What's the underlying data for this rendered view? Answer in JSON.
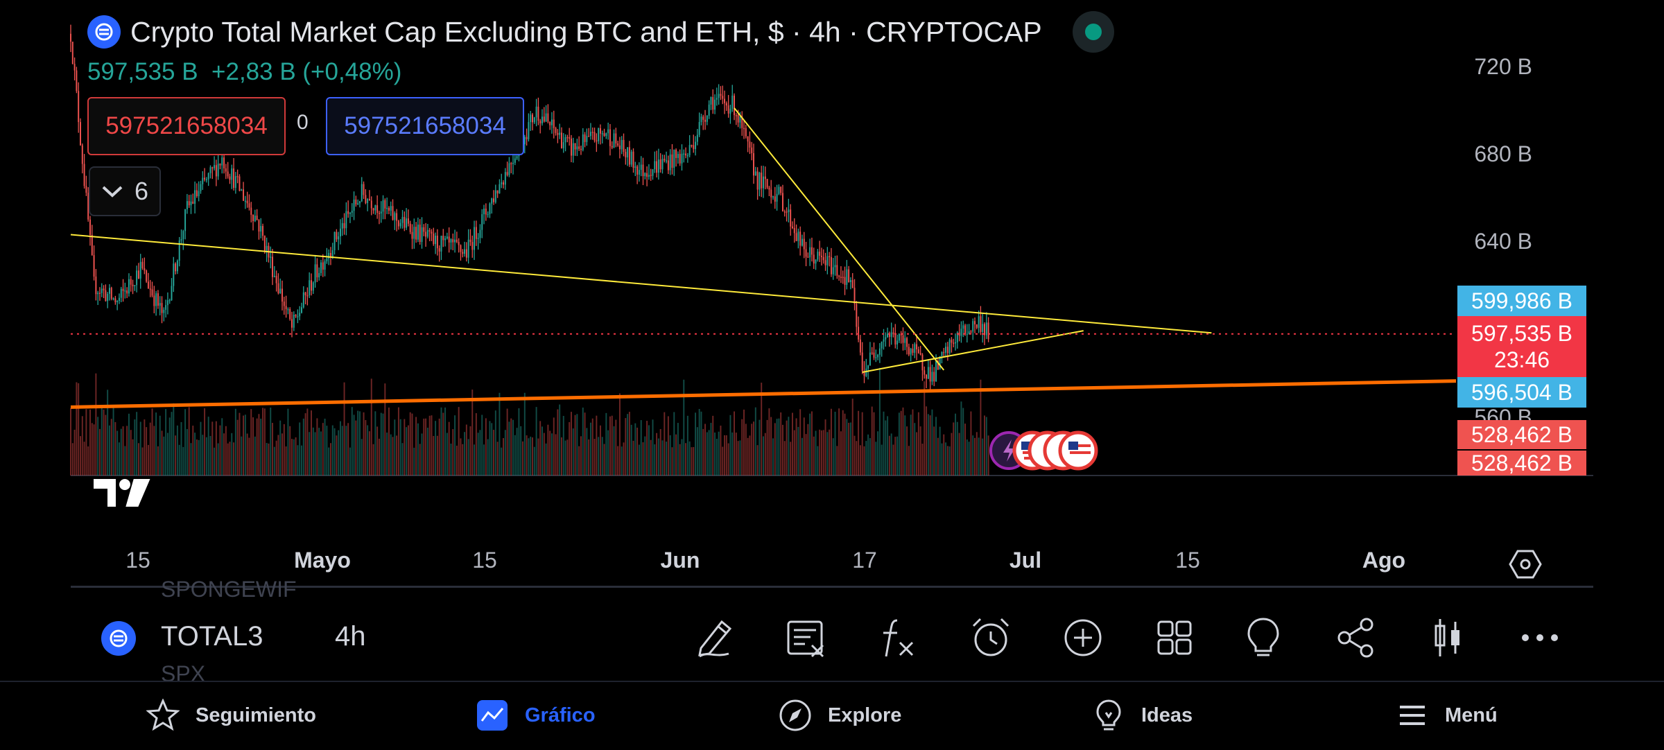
{
  "header": {
    "title": "Crypto Total Market Cap Excluding BTC and ETH, $ · 4h · CRYPTOCAP",
    "last_price": "597,535 B",
    "change": "+2,83 B (+0,48%)",
    "sell_price": "597521658034",
    "spread": "0",
    "buy_price": "597521658034",
    "indicators_count": "6"
  },
  "price_axis": {
    "labels": [
      "720 B",
      "680 B",
      "640 B",
      "560 B"
    ],
    "tags": {
      "upper": "599,986 B",
      "last": "597,535 B",
      "countdown": "23:46",
      "lower": "596,504 B",
      "vol1": "528,462 B",
      "vol2": "528,462 B"
    }
  },
  "time_axis": {
    "labels": [
      "15",
      "Mayo",
      "15",
      "Jun",
      "17",
      "Jul",
      "15",
      "Ago"
    ]
  },
  "toolbar": {
    "ghost_top": "SPONGEWIF",
    "ghost_bottom": "SPX",
    "symbol": "TOTAL3",
    "interval": "4h",
    "tools": [
      "pencil-icon",
      "text-note-icon",
      "indicators-fx-icon",
      "alarm-clock-icon",
      "add-circle-icon",
      "layouts-grid-icon",
      "ideas-bulb-icon",
      "share-icon",
      "candles-icon",
      "more-icon"
    ]
  },
  "nav": {
    "items": [
      {
        "label": "Seguimiento",
        "icon": "star-icon"
      },
      {
        "label": "Gráfico",
        "icon": "chart-icon"
      },
      {
        "label": "Explore",
        "icon": "compass-icon"
      },
      {
        "label": "Ideas",
        "icon": "bulb-icon"
      },
      {
        "label": "Menú",
        "icon": "menu-icon"
      }
    ]
  },
  "colors": {
    "up": "#26a69a",
    "down": "#ef5350",
    "trendline": "#ffeb3b",
    "support": "#ff6d00",
    "accent": "#2962ff",
    "tag_blue": "#42b4e6",
    "tag_red": "#f23645"
  },
  "chart_data": {
    "type": "candlestick",
    "symbol": "TOTAL3",
    "interval": "4h",
    "y_unit": "B USD",
    "ylim": [
      555,
      730
    ],
    "x_range": [
      "2024-04-11",
      "2024-08-08"
    ],
    "price_path": [
      {
        "date": "2024-04-11",
        "value": 735
      },
      {
        "date": "2024-04-13",
        "value": 620
      },
      {
        "date": "2024-04-15",
        "value": 612
      },
      {
        "date": "2024-04-17",
        "value": 628
      },
      {
        "date": "2024-04-19",
        "value": 605
      },
      {
        "date": "2024-04-21",
        "value": 655
      },
      {
        "date": "2024-04-24",
        "value": 678
      },
      {
        "date": "2024-04-27",
        "value": 650
      },
      {
        "date": "2024-04-30",
        "value": 600
      },
      {
        "date": "2024-05-02",
        "value": 625
      },
      {
        "date": "2024-05-06",
        "value": 662
      },
      {
        "date": "2024-05-09",
        "value": 650
      },
      {
        "date": "2024-05-12",
        "value": 640
      },
      {
        "date": "2024-05-15",
        "value": 635
      },
      {
        "date": "2024-05-18",
        "value": 668
      },
      {
        "date": "2024-05-21",
        "value": 700
      },
      {
        "date": "2024-05-24",
        "value": 682
      },
      {
        "date": "2024-05-27",
        "value": 690
      },
      {
        "date": "2024-05-30",
        "value": 672
      },
      {
        "date": "2024-06-03",
        "value": 680
      },
      {
        "date": "2024-06-05",
        "value": 705
      },
      {
        "date": "2024-06-07",
        "value": 702
      },
      {
        "date": "2024-06-09",
        "value": 668
      },
      {
        "date": "2024-06-11",
        "value": 660
      },
      {
        "date": "2024-06-13",
        "value": 635
      },
      {
        "date": "2024-06-15",
        "value": 630
      },
      {
        "date": "2024-06-17",
        "value": 622
      },
      {
        "date": "2024-06-18",
        "value": 580
      },
      {
        "date": "2024-06-20",
        "value": 598
      },
      {
        "date": "2024-06-22",
        "value": 592
      },
      {
        "date": "2024-06-24",
        "value": 578
      },
      {
        "date": "2024-06-26",
        "value": 596
      },
      {
        "date": "2024-06-28",
        "value": 603
      },
      {
        "date": "2024-06-29",
        "value": 597.5
      }
    ],
    "drawings": [
      {
        "name": "descending-trendline",
        "points": [
          {
            "date": "2024-04-11",
            "value": 643
          },
          {
            "date": "2024-07-18",
            "value": 598
          }
        ]
      },
      {
        "name": "steep-trendline",
        "points": [
          {
            "date": "2024-06-07",
            "value": 701
          },
          {
            "date": "2024-06-25",
            "value": 581
          }
        ]
      },
      {
        "name": "rising-trendline",
        "points": [
          {
            "date": "2024-06-18",
            "value": 580
          },
          {
            "date": "2024-07-07",
            "value": 599
          }
        ]
      },
      {
        "name": "support-line",
        "points": [
          {
            "date": "2024-04-11",
            "value": 564
          },
          {
            "date": "2024-08-08",
            "value": 576
          }
        ]
      }
    ],
    "last_price_line": 597.535
  }
}
